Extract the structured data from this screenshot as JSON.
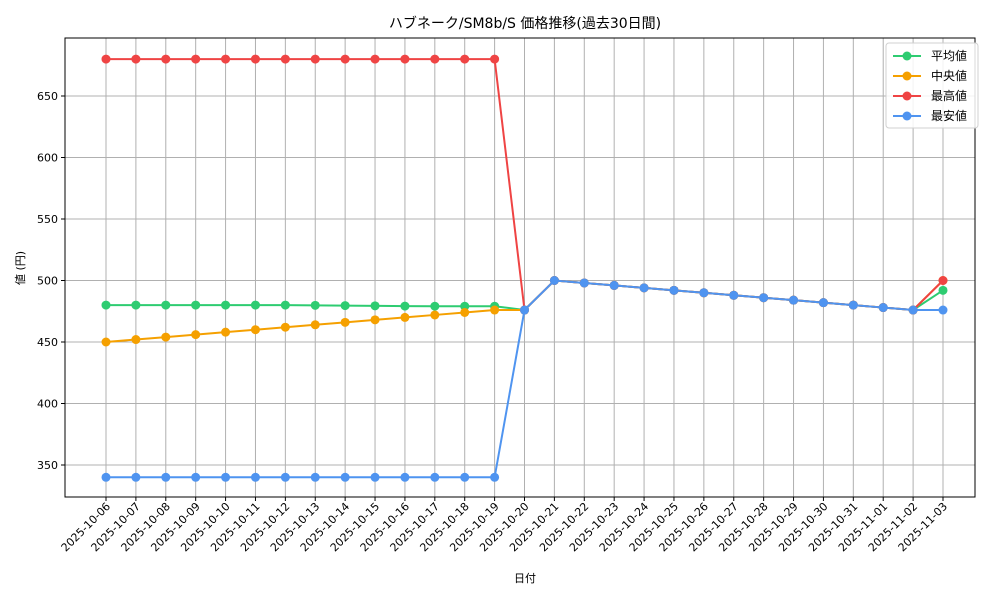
{
  "chart_data": {
    "type": "line",
    "title": "ハブネーク/SM8b/S 価格推移(過去30日間)",
    "xlabel": "日付",
    "ylabel": "値 (円)",
    "ylim": [
      325,
      695
    ],
    "yticks": [
      350,
      400,
      450,
      500,
      550,
      600,
      650
    ],
    "grid": true,
    "legend_position": "upper right",
    "x": [
      "2025-10-06",
      "2025-10-07",
      "2025-10-08",
      "2025-10-09",
      "2025-10-10",
      "2025-10-11",
      "2025-10-12",
      "2025-10-13",
      "2025-10-14",
      "2025-10-15",
      "2025-10-16",
      "2025-10-17",
      "2025-10-18",
      "2025-10-19",
      "2025-10-20",
      "2025-10-21",
      "2025-10-22",
      "2025-10-23",
      "2025-10-24",
      "2025-10-25",
      "2025-10-26",
      "2025-10-27",
      "2025-10-28",
      "2025-10-29",
      "2025-10-30",
      "2025-10-31",
      "2025-11-01",
      "2025-11-02",
      "2025-11-03"
    ],
    "series": [
      {
        "name": "平均値",
        "color": "#2ecc71",
        "values": [
          480,
          480,
          480,
          480,
          480,
          480,
          480,
          479.8,
          479.6,
          479.4,
          479.2,
          479.1,
          479.1,
          479.1,
          476,
          500,
          498,
          496,
          494,
          492,
          490,
          488,
          486,
          484,
          482,
          480,
          478,
          476,
          492
        ]
      },
      {
        "name": "中央値",
        "color": "#f5a000",
        "values": [
          450,
          452,
          454,
          456,
          458,
          460,
          462,
          464,
          466,
          468,
          470,
          472,
          474,
          476,
          476,
          500,
          498,
          496,
          494,
          492,
          490,
          488,
          486,
          484,
          482,
          480,
          478,
          476,
          500
        ]
      },
      {
        "name": "最高値",
        "color": "#ef4444",
        "values": [
          680,
          680,
          680,
          680,
          680,
          680,
          680,
          680,
          680,
          680,
          680,
          680,
          680,
          680,
          476,
          500,
          498,
          496,
          494,
          492,
          490,
          488,
          486,
          484,
          482,
          480,
          478,
          476,
          500
        ]
      },
      {
        "name": "最安値",
        "color": "#4f94f0",
        "values": [
          340,
          340,
          340,
          340,
          340,
          340,
          340,
          340,
          340,
          340,
          340,
          340,
          340,
          340,
          476,
          500,
          498,
          496,
          494,
          492,
          490,
          488,
          486,
          484,
          482,
          480,
          478,
          476,
          476
        ]
      }
    ]
  }
}
